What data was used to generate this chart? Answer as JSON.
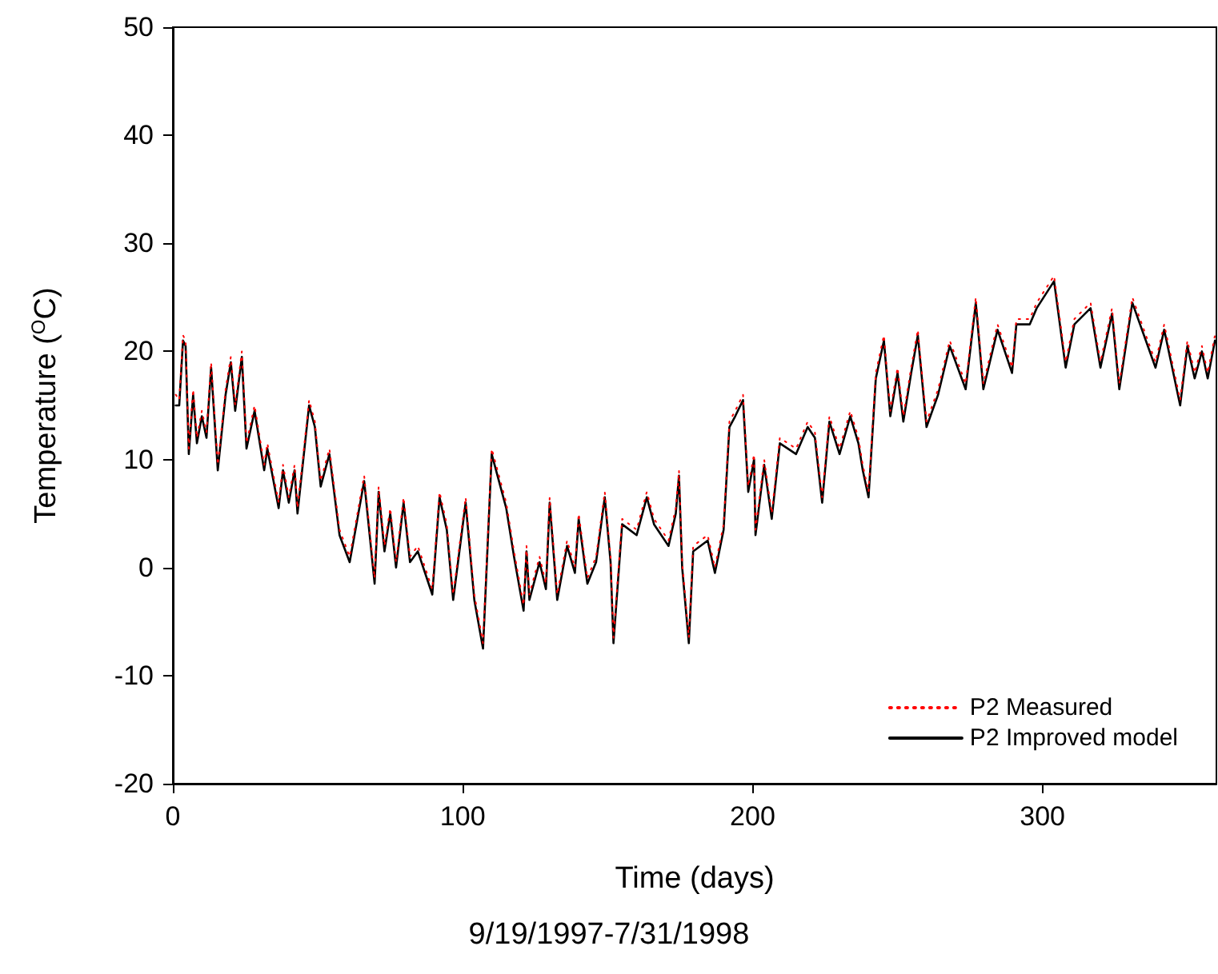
{
  "chart_data": {
    "type": "line",
    "xlabel": "Time (days)",
    "ylabel": "Temperature ($^{O}$C)",
    "annotations": [
      "9/19/1997-7/31/1998"
    ],
    "xlim": [
      0,
      360
    ],
    "xticks": [
      0,
      100,
      200,
      300
    ],
    "ylim": [
      -20,
      50
    ],
    "yticks": [
      -20,
      -10,
      0,
      10,
      20,
      30,
      40,
      50
    ],
    "grid": false,
    "legend": "bottom right",
    "marker": "none",
    "x": [
      1,
      2.2,
      3.5,
      4.4,
      5.5,
      7,
      8.3,
      10,
      11.6,
      13.2,
      15.5,
      18.2,
      20,
      21.5,
      23.8,
      25.4,
      28.2,
      31.5,
      32.6,
      36.5,
      38,
      40,
      42,
      43,
      47,
      49,
      51,
      54,
      57.5,
      61,
      66,
      69.6,
      71,
      73,
      75,
      77,
      79.6,
      81.8,
      84.5,
      89.5,
      92,
      94.5,
      96.7,
      101,
      104,
      107,
      110,
      112,
      115,
      117.7,
      121,
      122,
      123,
      126.5,
      128.7,
      130,
      132.6,
      136,
      138.7,
      140,
      143,
      146,
      149,
      151,
      152,
      155,
      160,
      163.5,
      166,
      171,
      173.5,
      174.6,
      175.7,
      178,
      179.5,
      184.5,
      187,
      190,
      192,
      194,
      196.7,
      198.5,
      200.5,
      201,
      204,
      206.6,
      209.4,
      215,
      219,
      221.5,
      224,
      226.5,
      230,
      233.7,
      236.5,
      238,
      240,
      242.5,
      245.3,
      247.5,
      250,
      252,
      254.7,
      257,
      260,
      264,
      268,
      273.5,
      277,
      279.6,
      284.5,
      289.5,
      291,
      295.6,
      298,
      304,
      306,
      308,
      311,
      316.6,
      320,
      324,
      326.5,
      331,
      339,
      342,
      347.5,
      350,
      352.5,
      355,
      357,
      359.5
    ],
    "series": [
      {
        "name": "P2 Measured",
        "color": "#ff0000",
        "line_style": "dotted",
        "values": [
          16,
          15.5,
          21.5,
          21,
          11,
          16.5,
          12,
          14.5,
          12.5,
          19,
          9.5,
          16.5,
          19.5,
          15,
          20,
          11.5,
          15,
          9.5,
          11.5,
          6,
          9.5,
          6.5,
          9.5,
          5.5,
          15.5,
          13.5,
          8,
          11,
          3.5,
          1,
          8.5,
          -1,
          7.5,
          2,
          5.5,
          0.5,
          6.5,
          1,
          2,
          -2,
          7,
          4,
          -2.5,
          6.5,
          -2.5,
          -7,
          11,
          9,
          6,
          1.5,
          -3.5,
          2,
          -2.5,
          1,
          -1.5,
          6.5,
          -2.5,
          2.5,
          0,
          5,
          -1,
          1,
          7,
          1,
          -6.5,
          4.5,
          3.5,
          7,
          4.5,
          2.5,
          5.5,
          9,
          0.5,
          -6.5,
          2,
          3,
          0,
          4,
          13.5,
          14.5,
          16,
          7.5,
          10.5,
          3.5,
          10,
          5,
          12,
          11,
          13.5,
          12.5,
          6.5,
          14,
          11,
          14.5,
          12,
          9.5,
          7,
          18,
          21.5,
          14.5,
          18.5,
          14,
          18.5,
          22,
          13.5,
          16.5,
          21,
          17,
          25,
          17,
          22.5,
          18.5,
          23,
          23,
          24.5,
          27,
          23,
          19,
          23,
          24.5,
          19,
          24,
          17,
          25,
          19,
          22.5,
          15.5,
          21,
          18,
          20.5,
          18,
          21.5
        ]
      },
      {
        "name": "P2 Improved model",
        "color": "#000000",
        "line_style": "solid",
        "values": [
          15,
          15,
          21,
          20.5,
          10.5,
          16,
          11.5,
          14,
          12,
          18.5,
          9,
          16,
          19,
          14.5,
          19.5,
          11,
          14.5,
          9,
          11,
          5.5,
          9,
          6,
          9,
          5,
          15,
          13,
          7.5,
          10.5,
          3,
          0.5,
          8,
          -1.5,
          7,
          1.5,
          5,
          0,
          6,
          0.5,
          1.5,
          -2.5,
          6.5,
          3.5,
          -3,
          6,
          -3,
          -7.5,
          10.5,
          8.5,
          5.5,
          1,
          -4,
          1.5,
          -3,
          0.5,
          -2,
          6,
          -3,
          2,
          -0.5,
          4.5,
          -1.5,
          0.5,
          6.5,
          0.5,
          -7,
          4,
          3,
          6.5,
          4,
          2,
          5,
          8.5,
          0,
          -7,
          1.5,
          2.5,
          -0.5,
          3.5,
          13,
          14,
          15.5,
          7,
          10,
          3,
          9.5,
          4.5,
          11.5,
          10.5,
          13,
          12,
          6,
          13.5,
          10.5,
          14,
          11.5,
          9,
          6.5,
          17.5,
          21,
          14,
          18,
          13.5,
          18,
          21.5,
          13,
          16,
          20.5,
          16.5,
          24.5,
          16.5,
          22,
          18,
          22.5,
          22.5,
          24,
          26.5,
          22.5,
          18.5,
          22.5,
          24,
          18.5,
          23.5,
          16.5,
          24.5,
          18.5,
          22,
          15,
          20.5,
          17.5,
          20,
          17.5,
          21
        ]
      }
    ]
  }
}
